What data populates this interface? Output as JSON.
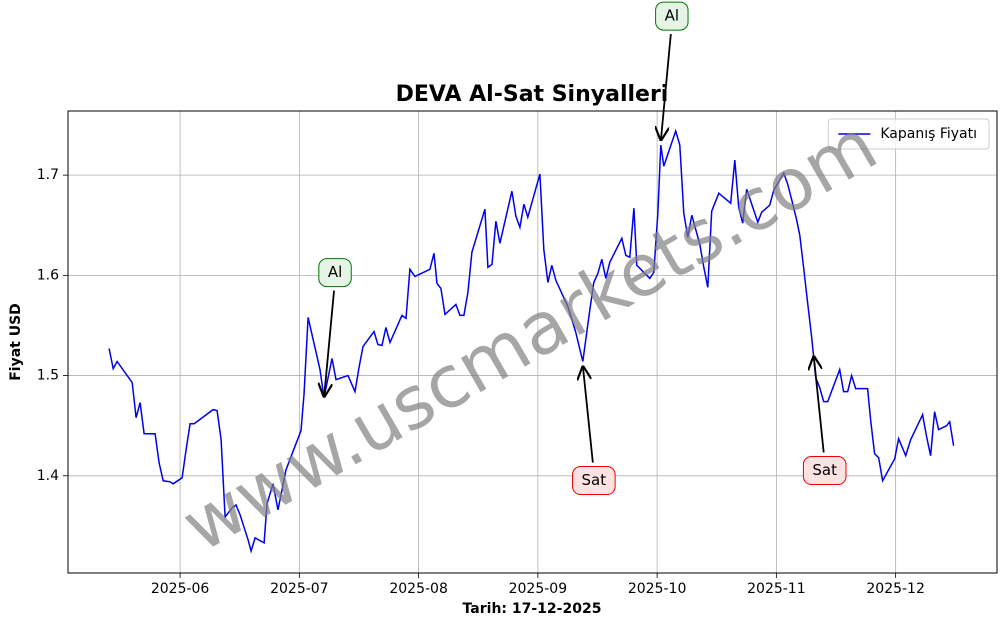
{
  "chart_data": {
    "type": "line",
    "title": "DEVA Al-Sat Sinyalleri",
    "x_label": "Tarih: 17-12-2025",
    "y_label": "Fiyat USD",
    "watermark": "www.uscmarkets.com",
    "legend": "upper right",
    "grid": true,
    "xlim": [
      5.06,
      12.85
    ],
    "ylim": [
      1.303,
      1.764
    ],
    "xticks": [
      {
        "value": 6,
        "label": "2025-06"
      },
      {
        "value": 7,
        "label": "2025-07"
      },
      {
        "value": 8,
        "label": "2025-08"
      },
      {
        "value": 9,
        "label": "2025-09"
      },
      {
        "value": 10,
        "label": "2025-10"
      },
      {
        "value": 11,
        "label": "2025-11"
      },
      {
        "value": 12,
        "label": "2025-12"
      }
    ],
    "yticks": [
      1.4,
      1.5,
      1.6,
      1.7
    ],
    "x": [
      5.405,
      5.439,
      5.472,
      5.598,
      5.631,
      5.665,
      5.698,
      5.79,
      5.824,
      5.858,
      5.916,
      5.941,
      6.017,
      6.05,
      6.084,
      6.117,
      6.277,
      6.31,
      6.344,
      6.377,
      6.436,
      6.469,
      6.503,
      6.57,
      6.595,
      6.629,
      6.704,
      6.729,
      6.779,
      6.821,
      6.888,
      6.972,
      7.014,
      7.039,
      7.073,
      7.173,
      7.207,
      7.274,
      7.307,
      7.408,
      7.467,
      7.5,
      7.534,
      7.626,
      7.659,
      7.693,
      7.726,
      7.76,
      7.86,
      7.894,
      7.927,
      7.969,
      8.095,
      8.129,
      8.154,
      8.187,
      8.221,
      8.313,
      8.346,
      8.38,
      8.413,
      8.447,
      8.556,
      8.581,
      8.615,
      8.648,
      8.682,
      8.782,
      8.816,
      8.849,
      8.883,
      8.916,
      9.017,
      9.05,
      9.084,
      9.117,
      9.151,
      9.251,
      9.318,
      9.377,
      9.402,
      9.436,
      9.469,
      9.503,
      9.536,
      9.57,
      9.603,
      9.704,
      9.737,
      9.771,
      9.805,
      9.83,
      9.939,
      9.972,
      10.006,
      10.031,
      10.056,
      10.156,
      10.19,
      10.224,
      10.257,
      10.291,
      10.358,
      10.391,
      10.425,
      10.458,
      10.517,
      10.617,
      10.651,
      10.684,
      10.718,
      10.751,
      10.844,
      10.877,
      10.944,
      10.978,
      11.062,
      11.095,
      11.129,
      11.17,
      11.196,
      11.229,
      11.263,
      11.296,
      11.33,
      11.363,
      11.397,
      11.43,
      11.531,
      11.564,
      11.598,
      11.631,
      11.665,
      11.765,
      11.791,
      11.824,
      11.858,
      11.891,
      11.992,
      12.025,
      12.084,
      12.126,
      12.226,
      12.26,
      12.293,
      12.327,
      12.36,
      12.427,
      12.453,
      12.486
    ],
    "series": [
      {
        "name": "Kapanış Fiyatı",
        "color": "#0000ee",
        "values": [
          1.527,
          1.507,
          1.514,
          1.493,
          1.458,
          1.473,
          1.442,
          1.442,
          1.413,
          1.395,
          1.394,
          1.392,
          1.398,
          1.426,
          1.452,
          1.452,
          1.466,
          1.465,
          1.436,
          1.359,
          1.368,
          1.371,
          1.361,
          1.336,
          1.325,
          1.338,
          1.333,
          1.372,
          1.392,
          1.366,
          1.406,
          1.432,
          1.445,
          1.481,
          1.558,
          1.506,
          1.478,
          1.517,
          1.496,
          1.5,
          1.484,
          1.508,
          1.529,
          1.544,
          1.531,
          1.53,
          1.548,
          1.533,
          1.56,
          1.557,
          1.606,
          1.599,
          1.606,
          1.622,
          1.592,
          1.587,
          1.561,
          1.571,
          1.56,
          1.56,
          1.583,
          1.623,
          1.666,
          1.608,
          1.611,
          1.654,
          1.632,
          1.684,
          1.659,
          1.648,
          1.671,
          1.658,
          1.701,
          1.626,
          1.593,
          1.61,
          1.595,
          1.569,
          1.543,
          1.514,
          1.536,
          1.566,
          1.593,
          1.602,
          1.616,
          1.597,
          1.613,
          1.637,
          1.62,
          1.618,
          1.667,
          1.61,
          1.597,
          1.603,
          1.661,
          1.73,
          1.709,
          1.744,
          1.73,
          1.662,
          1.638,
          1.66,
          1.631,
          1.608,
          1.588,
          1.664,
          1.682,
          1.672,
          1.715,
          1.668,
          1.652,
          1.686,
          1.653,
          1.663,
          1.67,
          1.685,
          1.702,
          1.691,
          1.675,
          1.655,
          1.64,
          1.607,
          1.572,
          1.538,
          1.498,
          1.488,
          1.474,
          1.474,
          1.506,
          1.484,
          1.484,
          1.5,
          1.487,
          1.487,
          1.455,
          1.422,
          1.418,
          1.395,
          1.417,
          1.437,
          1.42,
          1.436,
          1.461,
          1.439,
          1.42,
          1.464,
          1.446,
          1.45,
          1.454,
          1.43
        ]
      }
    ],
    "annotations": [
      {
        "text": "Al",
        "x": 7.207,
        "y": 1.478,
        "placement": "above",
        "edgecolor": "#007700",
        "facecolor": "#e6f4e6"
      },
      {
        "text": "Sat",
        "x": 9.377,
        "y": 1.51,
        "placement": "below",
        "edgecolor": "#ee0000",
        "facecolor": "#fde2e2"
      },
      {
        "text": "Al",
        "x": 10.031,
        "y": 1.734,
        "placement": "above",
        "edgecolor": "#007700",
        "facecolor": "#e6f4e6"
      },
      {
        "text": "Sat",
        "x": 11.313,
        "y": 1.52,
        "placement": "below",
        "edgecolor": "#ee0000",
        "facecolor": "#fde2e2"
      }
    ]
  }
}
